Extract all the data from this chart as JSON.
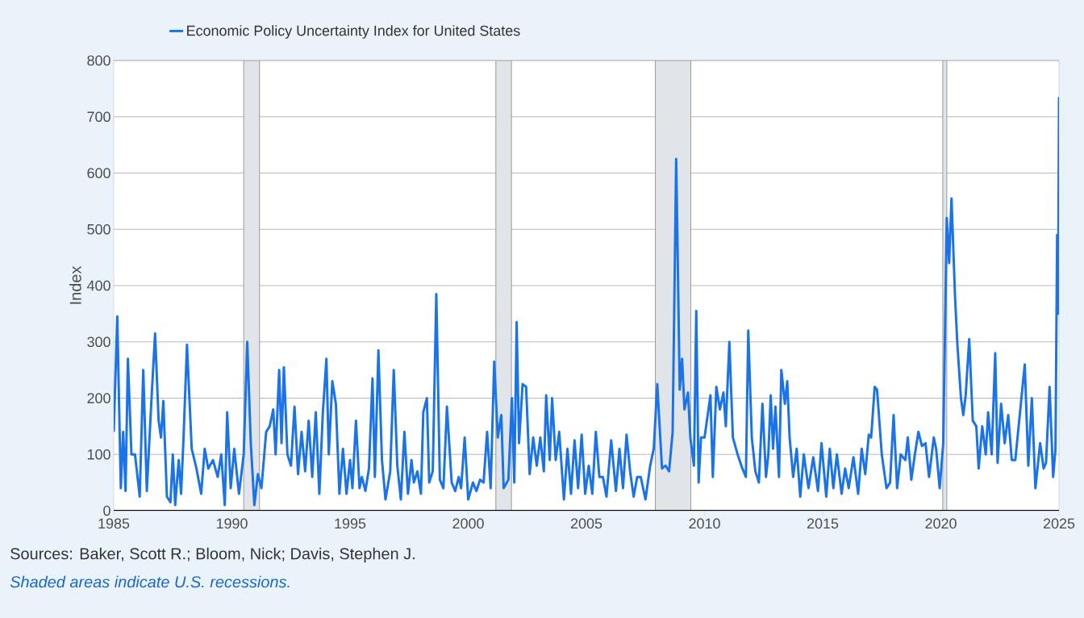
{
  "chart_data": {
    "type": "line",
    "xlabel": null,
    "ylabel": "Index",
    "x": [
      1985.0,
      1985.15,
      1985.3,
      1985.4,
      1985.5,
      1985.6,
      1985.75,
      1985.9,
      1986.1,
      1986.25,
      1986.4,
      1986.6,
      1986.75,
      1986.9,
      1987.0,
      1987.1,
      1987.25,
      1987.4,
      1987.5,
      1987.6,
      1987.75,
      1987.85,
      1987.95,
      1988.1,
      1988.3,
      1988.5,
      1988.7,
      1988.85,
      1989.0,
      1989.2,
      1989.4,
      1989.55,
      1989.7,
      1989.8,
      1989.95,
      1990.1,
      1990.3,
      1990.5,
      1990.65,
      1990.8,
      1990.95,
      1991.1,
      1991.25,
      1991.45,
      1991.6,
      1991.75,
      1991.85,
      1992.0,
      1992.1,
      1992.2,
      1992.35,
      1992.5,
      1992.65,
      1992.8,
      1992.95,
      1993.1,
      1993.25,
      1993.4,
      1993.55,
      1993.7,
      1993.85,
      1994.0,
      1994.1,
      1994.25,
      1994.4,
      1994.55,
      1994.7,
      1994.85,
      1995.0,
      1995.1,
      1995.25,
      1995.4,
      1995.5,
      1995.65,
      1995.8,
      1995.95,
      1996.05,
      1996.2,
      1996.35,
      1996.5,
      1996.7,
      1996.85,
      1997.0,
      1997.15,
      1997.3,
      1997.45,
      1997.6,
      1997.7,
      1997.85,
      1998.0,
      1998.1,
      1998.25,
      1998.35,
      1998.5,
      1998.65,
      1998.8,
      1998.95,
      1999.1,
      1999.3,
      1999.45,
      1999.6,
      1999.7,
      1999.85,
      2000.0,
      2000.2,
      2000.35,
      2000.5,
      2000.65,
      2000.8,
      2000.95,
      2001.1,
      2001.25,
      2001.4,
      2001.5,
      2001.7,
      2001.85,
      2001.95,
      2002.05,
      2002.15,
      2002.3,
      2002.45,
      2002.6,
      2002.75,
      2002.9,
      2003.05,
      2003.2,
      2003.3,
      2003.45,
      2003.55,
      2003.7,
      2003.85,
      2004.05,
      2004.2,
      2004.35,
      2004.5,
      2004.65,
      2004.8,
      2004.95,
      2005.1,
      2005.25,
      2005.4,
      2005.55,
      2005.7,
      2005.85,
      2006.05,
      2006.25,
      2006.4,
      2006.55,
      2006.7,
      2006.85,
      2007.0,
      2007.15,
      2007.3,
      2007.5,
      2007.7,
      2007.85,
      2008.0,
      2008.2,
      2008.35,
      2008.5,
      2008.65,
      2008.8,
      2008.95,
      2009.05,
      2009.15,
      2009.3,
      2009.4,
      2009.55,
      2009.65,
      2009.75,
      2009.85,
      2010.0,
      2010.1,
      2010.25,
      2010.35,
      2010.5,
      2010.65,
      2010.8,
      2010.9,
      2011.05,
      2011.2,
      2011.4,
      2011.6,
      2011.75,
      2011.85,
      2012.0,
      2012.15,
      2012.3,
      2012.45,
      2012.6,
      2012.7,
      2012.8,
      2012.9,
      2013.0,
      2013.15,
      2013.25,
      2013.4,
      2013.5,
      2013.6,
      2013.75,
      2013.9,
      2014.05,
      2014.2,
      2014.4,
      2014.6,
      2014.8,
      2014.95,
      2015.15,
      2015.3,
      2015.45,
      2015.6,
      2015.8,
      2015.95,
      2016.1,
      2016.3,
      2016.5,
      2016.65,
      2016.8,
      2016.95,
      2017.05,
      2017.2,
      2017.3,
      2017.5,
      2017.7,
      2017.85,
      2018.0,
      2018.15,
      2018.3,
      2018.5,
      2018.6,
      2018.75,
      2018.9,
      2019.05,
      2019.2,
      2019.35,
      2019.5,
      2019.7,
      2019.8,
      2019.95,
      2020.1,
      2020.25,
      2020.35,
      2020.45,
      2020.6,
      2020.7,
      2020.85,
      2020.95,
      2021.05,
      2021.2,
      2021.35,
      2021.5,
      2021.6,
      2021.75,
      2021.9,
      2022.0,
      2022.15,
      2022.3,
      2022.4,
      2022.55,
      2022.7,
      2022.85,
      2023.0,
      2023.15,
      2023.35,
      2023.55,
      2023.7,
      2023.85,
      2024.0,
      2024.2,
      2024.35,
      2024.45,
      2024.6,
      2024.75,
      2024.85,
      2024.92,
      2024.96,
      2025.0
    ],
    "series": [
      {
        "name": "Economic Policy Uncertainty Index for United States",
        "color": "#1a73e8",
        "values": [
          140,
          345,
          40,
          140,
          35,
          270,
          100,
          100,
          25,
          250,
          35,
          200,
          315,
          160,
          130,
          195,
          25,
          15,
          100,
          10,
          90,
          30,
          125,
          295,
          110,
          75,
          30,
          110,
          75,
          90,
          60,
          100,
          10,
          175,
          40,
          110,
          30,
          100,
          300,
          120,
          10,
          65,
          40,
          140,
          150,
          180,
          100,
          250,
          120,
          255,
          100,
          80,
          185,
          65,
          140,
          70,
          160,
          60,
          175,
          30,
          175,
          270,
          100,
          230,
          190,
          30,
          110,
          30,
          90,
          40,
          160,
          40,
          60,
          35,
          75,
          235,
          60,
          285,
          90,
          20,
          70,
          250,
          80,
          20,
          140,
          30,
          90,
          50,
          70,
          30,
          175,
          200,
          50,
          70,
          385,
          55,
          40,
          185,
          50,
          35,
          60,
          40,
          130,
          20,
          50,
          35,
          55,
          50,
          140,
          40,
          265,
          130,
          170,
          40,
          55,
          200,
          50,
          335,
          120,
          225,
          220,
          65,
          130,
          80,
          130,
          70,
          205,
          90,
          200,
          90,
          140,
          20,
          110,
          30,
          125,
          40,
          135,
          30,
          80,
          30,
          140,
          60,
          60,
          25,
          125,
          35,
          110,
          40,
          135,
          70,
          25,
          60,
          60,
          20,
          80,
          110,
          225,
          75,
          80,
          70,
          140,
          625,
          215,
          270,
          180,
          210,
          130,
          80,
          355,
          50,
          130,
          130,
          160,
          205,
          60,
          220,
          180,
          210,
          150,
          300,
          130,
          100,
          75,
          60,
          320,
          130,
          70,
          50,
          190,
          60,
          100,
          205,
          110,
          185,
          60,
          250,
          190,
          230,
          130,
          60,
          110,
          25,
          100,
          40,
          95,
          35,
          120,
          25,
          110,
          40,
          100,
          30,
          75,
          40,
          95,
          30,
          110,
          65,
          135,
          130,
          220,
          215,
          100,
          40,
          50,
          170,
          40,
          100,
          90,
          130,
          55,
          100,
          140,
          115,
          120,
          60,
          130,
          110,
          40,
          120,
          520,
          440,
          555,
          380,
          295,
          200,
          170,
          205,
          305,
          160,
          150,
          75,
          150,
          100,
          175,
          100,
          280,
          85,
          190,
          120,
          170,
          90,
          90,
          175,
          260,
          80,
          200,
          40,
          120,
          75,
          85,
          220,
          60,
          110,
          490,
          350,
          735
        ]
      }
    ],
    "xlim": [
      1985,
      2025
    ],
    "ylim": [
      0,
      800
    ],
    "xticks": [
      1985,
      1990,
      1995,
      2000,
      2005,
      2010,
      2015,
      2020,
      2025
    ],
    "yticks": [
      0,
      100,
      200,
      300,
      400,
      500,
      600,
      700,
      800
    ],
    "grid": "y",
    "legend": "top left",
    "marker": "none",
    "line_style": "solid",
    "bands": [
      {
        "axis": "x",
        "from": 1990.5,
        "to": 1991.17,
        "color": "#e1e5ea"
      },
      {
        "axis": "x",
        "from": 2001.17,
        "to": 2001.83,
        "color": "#e1e5ea"
      },
      {
        "axis": "x",
        "from": 2007.92,
        "to": 2009.42,
        "color": "#e1e5ea"
      },
      {
        "axis": "x",
        "from": 2020.08,
        "to": 2020.25,
        "color": "#e1e5ea"
      }
    ],
    "annotations": [
      "Sources: Baker, Scott R.; Bloom, Nick; Davis, Stephen J.",
      "Shaded areas indicate U.S. recessions."
    ]
  }
}
